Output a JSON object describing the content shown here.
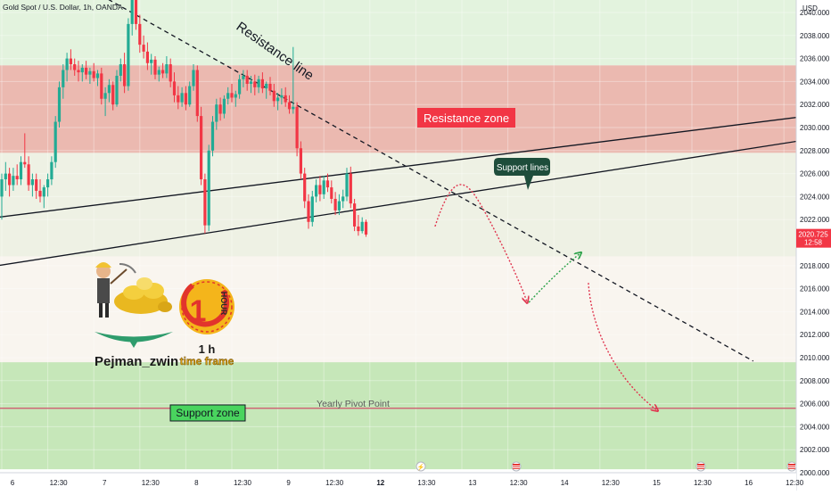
{
  "header": {
    "title": "Gold Spot / U.S. Dollar, 1h, OANDA"
  },
  "axis": {
    "currency": "USD"
  },
  "price_badge": {
    "price": "2020.725",
    "countdown": "12:58"
  },
  "labels": {
    "resistance_line": "Resistance line",
    "resistance_zone": "Resistance zone",
    "support_lines": "Support lines",
    "support_zone": "Support zone",
    "pivot": "Yearly Pivot Point",
    "author": "Pejman_zwin",
    "timeframe_line1": "1 h",
    "timeframe_line2": "time frame",
    "clock_text": "HOUR",
    "clock_number": "1"
  },
  "colors": {
    "up": "#22ab94",
    "down": "#f23645",
    "resistance_zone": "#ebb9b0",
    "support_zone": "#c6e7b9",
    "upper_band": "#e3f3de",
    "pivot_line": "#d0506a"
  },
  "chart_data": {
    "type": "candlestick",
    "title": "Gold Spot / U.S. Dollar, 1h, OANDA",
    "ylim": [
      2000,
      2042
    ],
    "y_ticks": [
      "2040.000",
      "2038.000",
      "2036.000",
      "2034.000",
      "2032.000",
      "2030.000",
      "2028.000",
      "2026.000",
      "2024.000",
      "2022.000",
      "2018.000",
      "2016.000",
      "2014.000",
      "2012.000",
      "2010.000",
      "2008.000",
      "2006.000",
      "2004.000",
      "2002.000",
      "2000.000"
    ],
    "y_tick_values": [
      2040,
      2038,
      2036,
      2034,
      2032,
      2030,
      2028,
      2026,
      2024,
      2022,
      2018,
      2016,
      2014,
      2012,
      2010,
      2008,
      2006,
      2004,
      2002,
      2000
    ],
    "x_ticks": [
      "6",
      "12:30",
      "7",
      "12:30",
      "8",
      "12:30",
      "9",
      "12:30",
      "12",
      "13:30",
      "13",
      "12:30",
      "14",
      "12:30",
      "15",
      "12:30",
      "16",
      "12:30"
    ],
    "x_tick_hours": [
      0,
      12,
      24,
      36,
      48,
      60,
      72,
      84,
      96,
      108,
      120,
      132,
      144,
      156,
      168,
      180,
      192,
      204
    ],
    "current_price": 2020.725,
    "zones": [
      {
        "name": "Resistance zone",
        "from": 2027.8,
        "to": 2035.4
      },
      {
        "name": "Support zone",
        "from": 2000.3,
        "to": 2009.6
      }
    ],
    "pivot": {
      "name": "Yearly Pivot Point",
      "value": 2005.6
    },
    "trend_lines": [
      {
        "name": "Resistance line",
        "from": [
          20.5,
          2042.5
        ],
        "to": [
          196,
          2009.7
        ],
        "style": "dashed"
      },
      {
        "name": "Support line upper",
        "from": [
          -1,
          2022.2
        ],
        "to": [
          215,
          2031.2
        ]
      },
      {
        "name": "Support line lower",
        "from": [
          -1,
          2018.0
        ],
        "to": [
          215,
          2029.2
        ]
      }
    ],
    "scenario_path": [
      [
        113,
        2021.4
      ],
      [
        117,
        2025.0
      ],
      [
        120,
        2025.6
      ],
      [
        124,
        2023.8
      ],
      [
        137,
        2014.8
      ],
      [
        145,
        2017.5
      ],
      [
        151,
        2019.1
      ],
      [
        153,
        2016.5
      ],
      [
        171,
        2005.4
      ]
    ],
    "candles": [
      {
        "t": 0,
        "o": 2024.0,
        "h": 2026.0,
        "l": 2022.0,
        "c": 2025.5
      },
      {
        "t": 1,
        "o": 2025.5,
        "h": 2027.0,
        "l": 2024.5,
        "c": 2026.0
      },
      {
        "t": 2,
        "o": 2026.0,
        "h": 2026.5,
        "l": 2024.0,
        "c": 2025.0
      },
      {
        "t": 3,
        "o": 2025.0,
        "h": 2026.5,
        "l": 2024.5,
        "c": 2025.8
      },
      {
        "t": 4,
        "o": 2025.8,
        "h": 2026.8,
        "l": 2025.0,
        "c": 2025.5
      },
      {
        "t": 5,
        "o": 2025.5,
        "h": 2027.5,
        "l": 2025.0,
        "c": 2027.0
      },
      {
        "t": 6,
        "o": 2027.0,
        "h": 2029.5,
        "l": 2026.5,
        "c": 2026.8
      },
      {
        "t": 7,
        "o": 2026.8,
        "h": 2027.5,
        "l": 2024.5,
        "c": 2025.0
      },
      {
        "t": 8,
        "o": 2025.0,
        "h": 2026.0,
        "l": 2024.0,
        "c": 2025.5
      },
      {
        "t": 9,
        "o": 2025.5,
        "h": 2026.0,
        "l": 2023.8,
        "c": 2024.5
      },
      {
        "t": 10,
        "o": 2024.5,
        "h": 2025.5,
        "l": 2023.5,
        "c": 2024.0
      },
      {
        "t": 11,
        "o": 2024.0,
        "h": 2025.0,
        "l": 2023.0,
        "c": 2024.8
      },
      {
        "t": 12,
        "o": 2024.8,
        "h": 2026.0,
        "l": 2024.0,
        "c": 2025.5
      },
      {
        "t": 13,
        "o": 2025.5,
        "h": 2027.5,
        "l": 2025.0,
        "c": 2027.0
      },
      {
        "t": 14,
        "o": 2027.0,
        "h": 2031.0,
        "l": 2026.5,
        "c": 2030.5
      },
      {
        "t": 15,
        "o": 2030.5,
        "h": 2034.0,
        "l": 2030.0,
        "c": 2033.5
      },
      {
        "t": 16,
        "o": 2033.5,
        "h": 2035.5,
        "l": 2032.5,
        "c": 2035.0
      },
      {
        "t": 17,
        "o": 2035.0,
        "h": 2036.5,
        "l": 2034.0,
        "c": 2036.0
      },
      {
        "t": 18,
        "o": 2036.0,
        "h": 2036.8,
        "l": 2035.0,
        "c": 2035.5
      },
      {
        "t": 19,
        "o": 2035.5,
        "h": 2036.0,
        "l": 2034.5,
        "c": 2035.0
      },
      {
        "t": 20,
        "o": 2035.0,
        "h": 2035.8,
        "l": 2034.0,
        "c": 2034.8
      },
      {
        "t": 21,
        "o": 2034.8,
        "h": 2035.5,
        "l": 2034.0,
        "c": 2035.2
      },
      {
        "t": 22,
        "o": 2035.2,
        "h": 2035.8,
        "l": 2034.2,
        "c": 2034.6
      },
      {
        "t": 23,
        "o": 2034.6,
        "h": 2035.2,
        "l": 2033.8,
        "c": 2034.9
      },
      {
        "t": 24,
        "o": 2034.9,
        "h": 2035.6,
        "l": 2034.0,
        "c": 2034.3
      },
      {
        "t": 25,
        "o": 2034.3,
        "h": 2035.0,
        "l": 2033.6,
        "c": 2034.7
      },
      {
        "t": 26,
        "o": 2034.7,
        "h": 2035.2,
        "l": 2032.0,
        "c": 2032.5
      },
      {
        "t": 27,
        "o": 2032.5,
        "h": 2033.5,
        "l": 2031.0,
        "c": 2033.0
      },
      {
        "t": 28,
        "o": 2033.0,
        "h": 2034.2,
        "l": 2032.2,
        "c": 2033.7
      },
      {
        "t": 29,
        "o": 2033.7,
        "h": 2034.0,
        "l": 2031.5,
        "c": 2032.0
      },
      {
        "t": 30,
        "o": 2032.0,
        "h": 2035.0,
        "l": 2031.8,
        "c": 2034.5
      },
      {
        "t": 31,
        "o": 2034.5,
        "h": 2036.0,
        "l": 2034.0,
        "c": 2035.5
      },
      {
        "t": 32,
        "o": 2035.5,
        "h": 2036.5,
        "l": 2033.0,
        "c": 2033.6
      },
      {
        "t": 33,
        "o": 2033.6,
        "h": 2039.5,
        "l": 2033.2,
        "c": 2039.0
      },
      {
        "t": 34,
        "o": 2039.0,
        "h": 2042.0,
        "l": 2038.0,
        "c": 2041.5
      },
      {
        "t": 35,
        "o": 2041.5,
        "h": 2042.0,
        "l": 2038.5,
        "c": 2039.0
      },
      {
        "t": 36,
        "o": 2039.0,
        "h": 2039.8,
        "l": 2036.5,
        "c": 2037.2
      },
      {
        "t": 37,
        "o": 2037.2,
        "h": 2038.0,
        "l": 2036.0,
        "c": 2036.6
      },
      {
        "t": 38,
        "o": 2036.6,
        "h": 2037.4,
        "l": 2035.0,
        "c": 2035.6
      },
      {
        "t": 39,
        "o": 2035.6,
        "h": 2036.4,
        "l": 2034.6,
        "c": 2035.9
      },
      {
        "t": 40,
        "o": 2035.9,
        "h": 2036.2,
        "l": 2034.2,
        "c": 2034.6
      },
      {
        "t": 41,
        "o": 2034.6,
        "h": 2035.3,
        "l": 2034.0,
        "c": 2035.0
      },
      {
        "t": 42,
        "o": 2035.0,
        "h": 2035.6,
        "l": 2034.3,
        "c": 2034.7
      },
      {
        "t": 43,
        "o": 2034.7,
        "h": 2036.2,
        "l": 2034.3,
        "c": 2035.5
      },
      {
        "t": 44,
        "o": 2035.5,
        "h": 2036.0,
        "l": 2033.5,
        "c": 2034.0
      },
      {
        "t": 45,
        "o": 2034.0,
        "h": 2034.8,
        "l": 2032.2,
        "c": 2032.8
      },
      {
        "t": 46,
        "o": 2032.8,
        "h": 2033.6,
        "l": 2031.6,
        "c": 2032.2
      },
      {
        "t": 47,
        "o": 2032.2,
        "h": 2033.5,
        "l": 2031.8,
        "c": 2033.0
      },
      {
        "t": 48,
        "o": 2033.0,
        "h": 2033.6,
        "l": 2031.5,
        "c": 2032.0
      },
      {
        "t": 49,
        "o": 2032.0,
        "h": 2034.0,
        "l": 2031.8,
        "c": 2033.6
      },
      {
        "t": 50,
        "o": 2033.6,
        "h": 2035.5,
        "l": 2033.2,
        "c": 2035.0
      },
      {
        "t": 51,
        "o": 2035.0,
        "h": 2035.4,
        "l": 2030.5,
        "c": 2031.0
      },
      {
        "t": 52,
        "o": 2031.0,
        "h": 2031.8,
        "l": 2025.0,
        "c": 2025.5
      },
      {
        "t": 53,
        "o": 2025.5,
        "h": 2026.0,
        "l": 2020.8,
        "c": 2021.5
      },
      {
        "t": 54,
        "o": 2021.5,
        "h": 2028.5,
        "l": 2021.0,
        "c": 2028.0
      },
      {
        "t": 55,
        "o": 2028.0,
        "h": 2031.0,
        "l": 2027.5,
        "c": 2030.5
      },
      {
        "t": 56,
        "o": 2030.5,
        "h": 2032.5,
        "l": 2029.8,
        "c": 2032.0
      },
      {
        "t": 57,
        "o": 2032.0,
        "h": 2032.6,
        "l": 2030.6,
        "c": 2031.2
      },
      {
        "t": 58,
        "o": 2031.2,
        "h": 2032.8,
        "l": 2030.8,
        "c": 2032.5
      },
      {
        "t": 59,
        "o": 2032.5,
        "h": 2033.5,
        "l": 2032.0,
        "c": 2033.0
      },
      {
        "t": 60,
        "o": 2033.0,
        "h": 2033.8,
        "l": 2032.2,
        "c": 2032.6
      },
      {
        "t": 61,
        "o": 2032.6,
        "h": 2033.2,
        "l": 2031.8,
        "c": 2032.9
      },
      {
        "t": 62,
        "o": 2032.9,
        "h": 2034.6,
        "l": 2032.5,
        "c": 2034.2
      },
      {
        "t": 63,
        "o": 2034.2,
        "h": 2035.0,
        "l": 2033.5,
        "c": 2034.5
      },
      {
        "t": 64,
        "o": 2034.5,
        "h": 2035.0,
        "l": 2033.2,
        "c": 2033.8
      },
      {
        "t": 65,
        "o": 2033.8,
        "h": 2034.5,
        "l": 2033.0,
        "c": 2034.0
      },
      {
        "t": 66,
        "o": 2034.0,
        "h": 2034.6,
        "l": 2032.8,
        "c": 2033.5
      },
      {
        "t": 67,
        "o": 2033.5,
        "h": 2034.5,
        "l": 2033.0,
        "c": 2034.2
      },
      {
        "t": 68,
        "o": 2034.2,
        "h": 2034.8,
        "l": 2033.0,
        "c": 2033.4
      },
      {
        "t": 69,
        "o": 2033.4,
        "h": 2034.0,
        "l": 2032.5,
        "c": 2033.8
      },
      {
        "t": 70,
        "o": 2033.8,
        "h": 2034.4,
        "l": 2032.8,
        "c": 2033.2
      },
      {
        "t": 71,
        "o": 2033.2,
        "h": 2033.8,
        "l": 2031.8,
        "c": 2032.3
      },
      {
        "t": 72,
        "o": 2032.3,
        "h": 2033.0,
        "l": 2031.5,
        "c": 2032.6
      },
      {
        "t": 73,
        "o": 2032.6,
        "h": 2033.4,
        "l": 2032.0,
        "c": 2032.8
      },
      {
        "t": 74,
        "o": 2032.8,
        "h": 2033.5,
        "l": 2031.8,
        "c": 2032.2
      },
      {
        "t": 75,
        "o": 2032.2,
        "h": 2032.8,
        "l": 2031.2,
        "c": 2031.6
      },
      {
        "t": 76,
        "o": 2031.6,
        "h": 2037.0,
        "l": 2031.2,
        "c": 2031.8
      },
      {
        "t": 77,
        "o": 2031.8,
        "h": 2032.2,
        "l": 2027.5,
        "c": 2028.2
      },
      {
        "t": 78,
        "o": 2028.2,
        "h": 2028.8,
        "l": 2025.5,
        "c": 2026.0
      },
      {
        "t": 79,
        "o": 2026.0,
        "h": 2026.5,
        "l": 2023.0,
        "c": 2023.6
      },
      {
        "t": 80,
        "o": 2023.6,
        "h": 2024.2,
        "l": 2021.2,
        "c": 2021.8
      },
      {
        "t": 81,
        "o": 2021.8,
        "h": 2024.5,
        "l": 2021.4,
        "c": 2024.0
      },
      {
        "t": 82,
        "o": 2024.0,
        "h": 2025.5,
        "l": 2023.5,
        "c": 2025.0
      },
      {
        "t": 83,
        "o": 2025.0,
        "h": 2025.8,
        "l": 2023.6,
        "c": 2024.2
      },
      {
        "t": 84,
        "o": 2024.2,
        "h": 2025.8,
        "l": 2023.8,
        "c": 2025.4
      },
      {
        "t": 85,
        "o": 2025.4,
        "h": 2026.0,
        "l": 2024.4,
        "c": 2024.8
      },
      {
        "t": 86,
        "o": 2024.8,
        "h": 2025.4,
        "l": 2023.4,
        "c": 2023.8
      },
      {
        "t": 87,
        "o": 2023.8,
        "h": 2024.4,
        "l": 2022.4,
        "c": 2022.8
      },
      {
        "t": 88,
        "o": 2022.8,
        "h": 2024.2,
        "l": 2022.4,
        "c": 2023.6
      },
      {
        "t": 89,
        "o": 2023.6,
        "h": 2024.6,
        "l": 2023.0,
        "c": 2024.0
      },
      {
        "t": 90,
        "o": 2024.0,
        "h": 2026.5,
        "l": 2023.6,
        "c": 2026.0
      },
      {
        "t": 91,
        "o": 2026.0,
        "h": 2026.6,
        "l": 2023.0,
        "c": 2023.4
      },
      {
        "t": 92,
        "o": 2023.4,
        "h": 2023.8,
        "l": 2021.0,
        "c": 2021.4
      },
      {
        "t": 93,
        "o": 2021.4,
        "h": 2022.4,
        "l": 2020.6,
        "c": 2021.0
      },
      {
        "t": 94,
        "o": 2021.0,
        "h": 2022.2,
        "l": 2020.8,
        "c": 2021.8
      },
      {
        "t": 95,
        "o": 2021.8,
        "h": 2022.0,
        "l": 2020.5,
        "c": 2020.7
      }
    ]
  }
}
